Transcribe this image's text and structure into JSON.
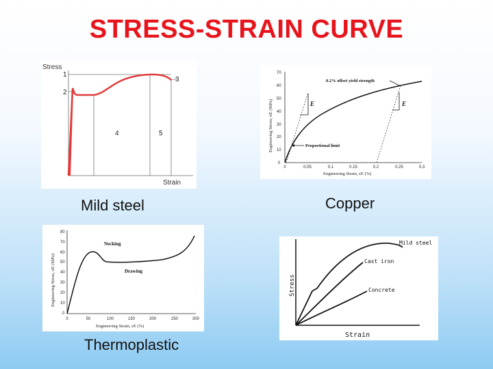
{
  "title": "STRESS-STRAIN CURVE",
  "captions": {
    "mild_steel": "Mild steel",
    "copper": "Copper",
    "thermoplastic": "Thermoplastic"
  },
  "mild_steel_chart": {
    "y_label": "Stress",
    "x_label": "Strain",
    "points": [
      "1",
      "2",
      "3",
      "4",
      "5"
    ],
    "curve_color": "#e23b3b"
  },
  "copper_chart": {
    "y_label": "Engineering Stress, σE (MPa)",
    "x_label": "Engineering Strain, εE (%)",
    "y_ticks": [
      "70",
      "60",
      "50",
      "40",
      "30",
      "20",
      "10",
      "0"
    ],
    "x_ticks": [
      "0",
      "0.05",
      "0.1",
      "0.15",
      "0.2",
      "0.25",
      "0.3"
    ],
    "annotations": {
      "offset": "0.2% offset yield strength",
      "prop": "Proportional limit",
      "E1": "E",
      "E2": "E"
    }
  },
  "thermoplastic_chart": {
    "y_label": "Engineering Stress, σE (MPa)",
    "x_label": "Engineering Strain, εE (%)",
    "y_ticks": [
      "80",
      "70",
      "60",
      "50",
      "40",
      "30",
      "20",
      "10",
      "0"
    ],
    "x_ticks": [
      "0",
      "50",
      "100",
      "150",
      "200",
      "250",
      "300"
    ],
    "annotations": {
      "necking": "Necking",
      "drawing": "Drawing"
    }
  },
  "materials_chart": {
    "y_label": "Stress",
    "x_label": "Strain",
    "series": [
      "Mild steel",
      "Cast iron",
      "Concrete"
    ]
  }
}
